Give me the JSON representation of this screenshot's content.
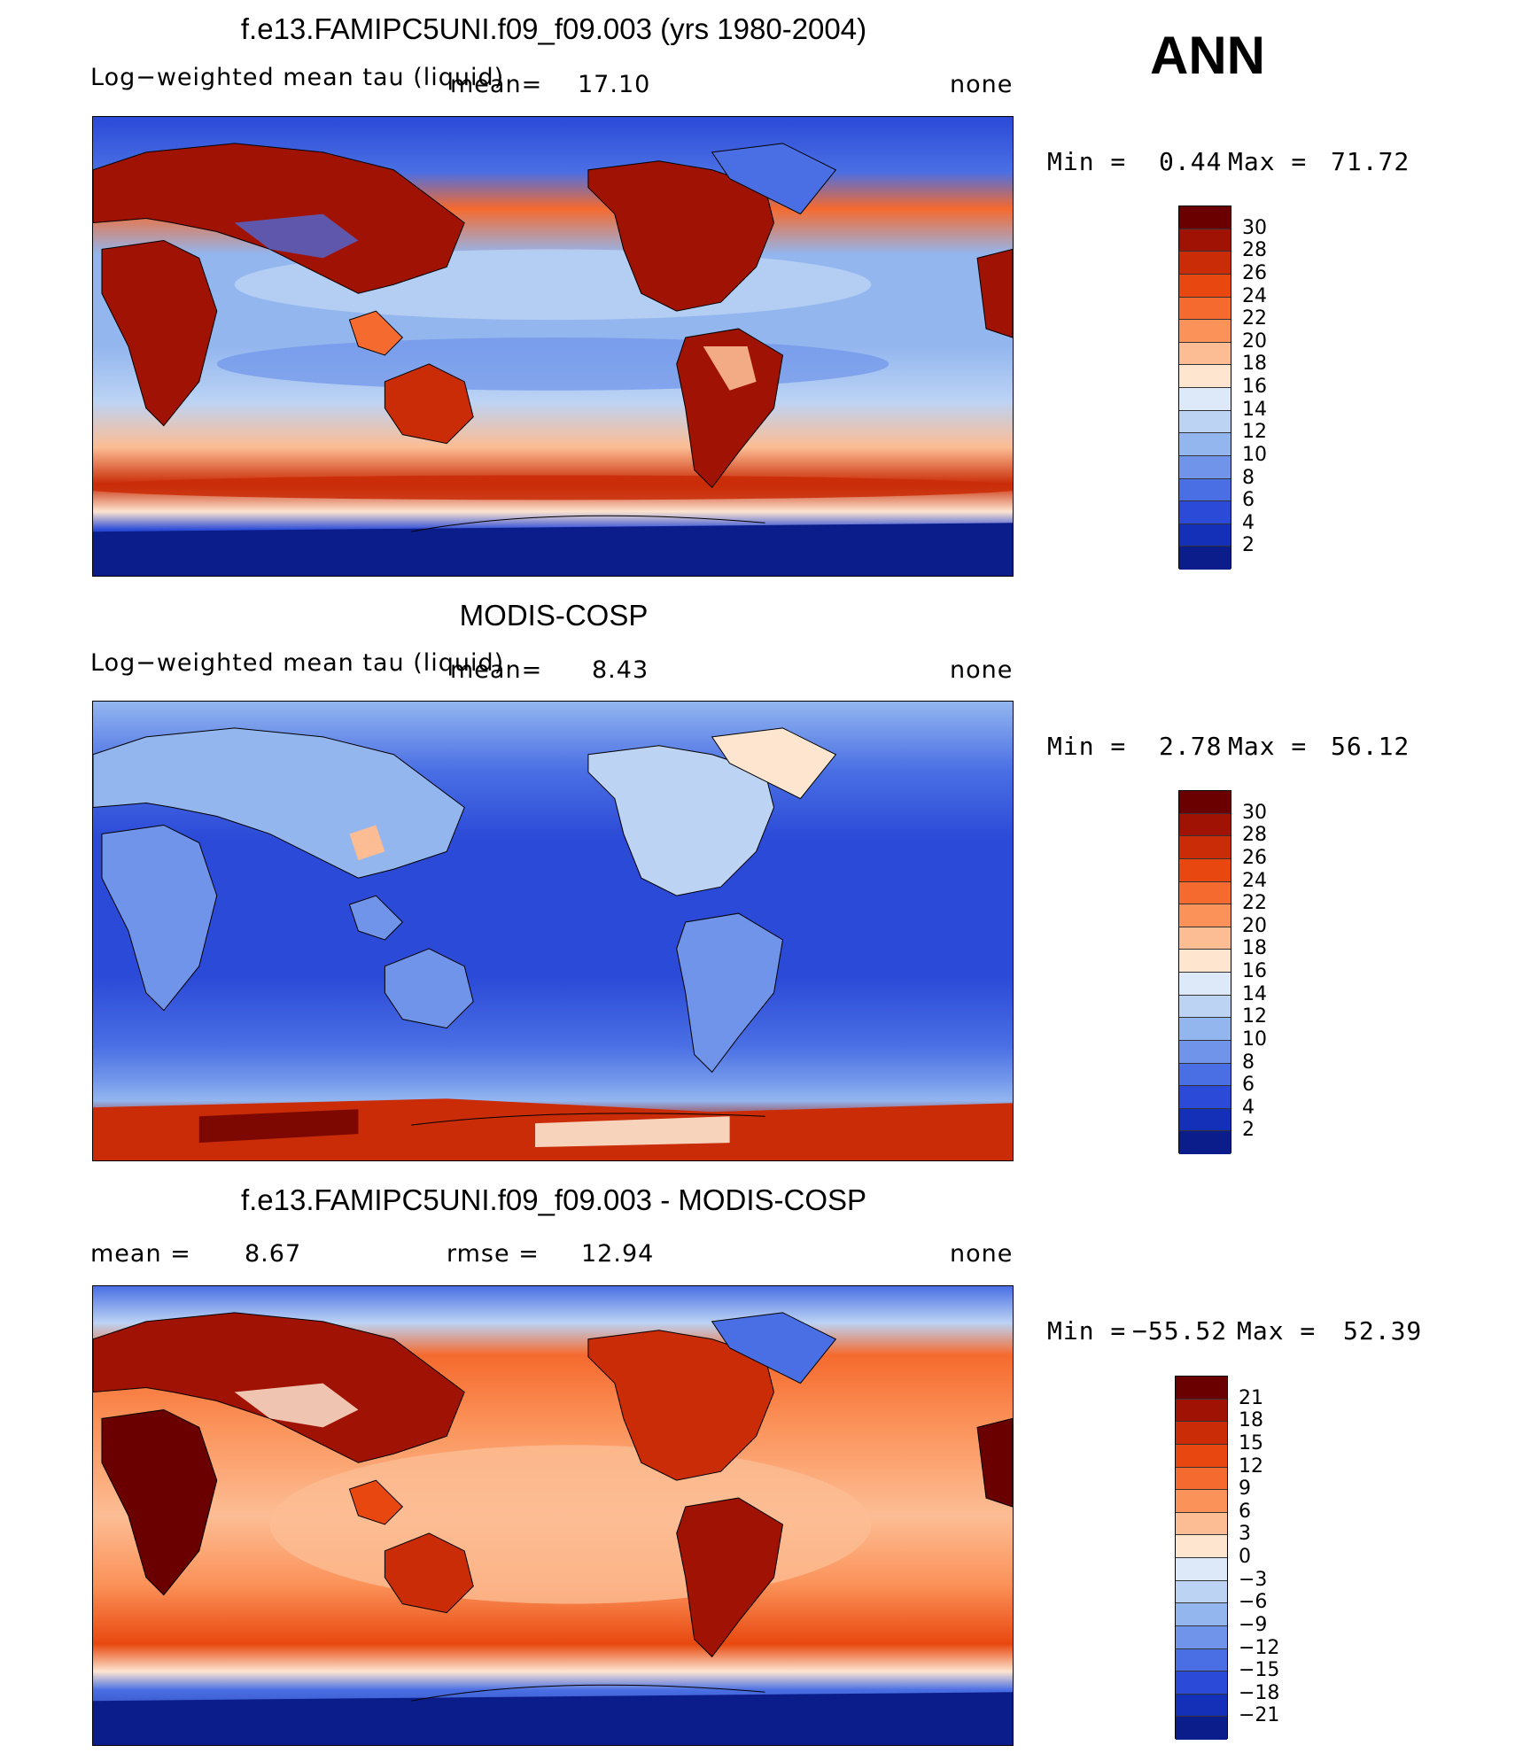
{
  "annotation": "ANN",
  "panels": [
    {
      "id": "model",
      "title": "f.e13.FAMIPC5UNI.f09_f09.003 (yrs 1980-2004)",
      "left_label": "Log−weighted mean tau (liquid)",
      "mean_label": "mean=",
      "mean_value": "17.10",
      "rmse_label": "",
      "rmse_value": "",
      "right_label": "none",
      "min_label": "Min =",
      "min_value": "0.44",
      "max_label": "Max =",
      "max_value": "71.72",
      "colorbar_ticks": [
        "30",
        "28",
        "26",
        "24",
        "22",
        "20",
        "18",
        "16",
        "14",
        "12",
        "10",
        "8",
        "6",
        "4",
        "2"
      ],
      "colors": [
        "#6a0000",
        "#a01203",
        "#c92c07",
        "#e8480f",
        "#f56a2e",
        "#fb9259",
        "#fcbd94",
        "#fde5d0",
        "#dde9f8",
        "#bcd3f4",
        "#93b6ef",
        "#6f94ea",
        "#4a6fe4",
        "#2b4ad7",
        "#1530b8",
        "#0b1d8a"
      ]
    },
    {
      "id": "obs",
      "title": "MODIS-COSP",
      "left_label": "Log−weighted mean tau (liquid)",
      "mean_label": "mean=",
      "mean_value": "8.43",
      "rmse_label": "",
      "rmse_value": "",
      "right_label": "none",
      "min_label": "Min =",
      "min_value": "2.78",
      "max_label": "Max =",
      "max_value": "56.12",
      "colorbar_ticks": [
        "30",
        "28",
        "26",
        "24",
        "22",
        "20",
        "18",
        "16",
        "14",
        "12",
        "10",
        "8",
        "6",
        "4",
        "2"
      ],
      "colors": [
        "#6a0000",
        "#a01203",
        "#c92c07",
        "#e8480f",
        "#f56a2e",
        "#fb9259",
        "#fcbd94",
        "#fde5d0",
        "#dde9f8",
        "#bcd3f4",
        "#93b6ef",
        "#6f94ea",
        "#4a6fe4",
        "#2b4ad7",
        "#1530b8",
        "#0b1d8a"
      ]
    },
    {
      "id": "diff",
      "title": "f.e13.FAMIPC5UNI.f09_f09.003 - MODIS-COSP",
      "left_label": "mean =",
      "mean_label": "",
      "mean_value": "8.67",
      "rmse_label": "rmse =",
      "rmse_value": "12.94",
      "right_label": "none",
      "min_label": "Min =",
      "min_value": "−55.52",
      "max_label": "Max =",
      "max_value": "52.39",
      "colorbar_ticks": [
        "21",
        "18",
        "15",
        "12",
        "9",
        "6",
        "3",
        "0",
        "−3",
        "−6",
        "−9",
        "−12",
        "−15",
        "−18",
        "−21"
      ],
      "colors": [
        "#6a0000",
        "#a01203",
        "#c92c07",
        "#e8480f",
        "#f56a2e",
        "#fb9259",
        "#fcbd94",
        "#fde5d0",
        "#dde9f8",
        "#bcd3f4",
        "#93b6ef",
        "#6f94ea",
        "#4a6fe4",
        "#2b4ad7",
        "#1530b8",
        "#0b1d8a"
      ]
    }
  ]
}
